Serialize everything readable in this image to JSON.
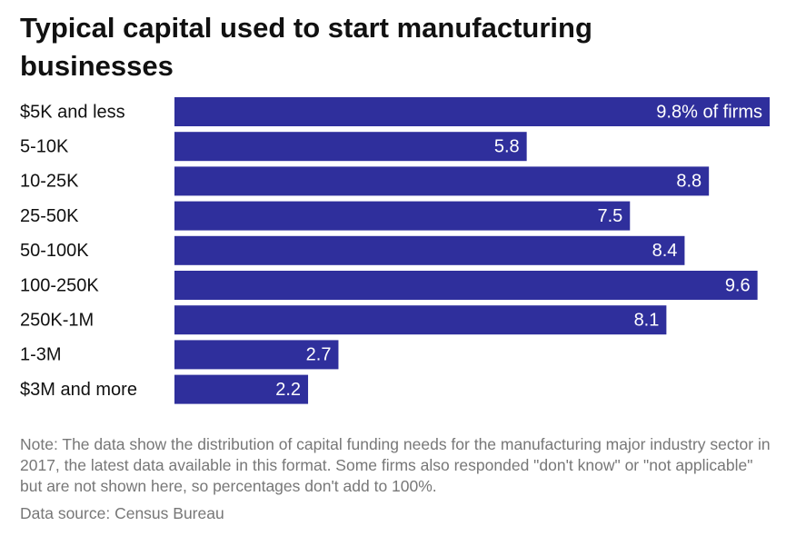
{
  "chart_data": {
    "type": "bar",
    "orientation": "horizontal",
    "title": "Typical capital used to start manufacturing businesses",
    "categories": [
      "$5K and less",
      "5-10K",
      "10-25K",
      "25-50K",
      "50-100K",
      "100-250K",
      "250K-1M",
      "1-3M",
      "$3M and more"
    ],
    "values": [
      9.8,
      5.8,
      8.8,
      7.5,
      8.4,
      9.6,
      8.1,
      2.7,
      2.2
    ],
    "value_labels": [
      "9.8% of firms",
      "5.8",
      "8.8",
      "7.5",
      "8.4",
      "9.6",
      "8.1",
      "2.7",
      "2.2"
    ],
    "color": "#2f2f9c",
    "note": "Note: The data show the distribution of capital funding needs for the manufacturing major industry sector in 2017, the latest data available in this format. Some firms also responded \"don't know\" or \"not applicable\" but are not shown here, so percentages don't add to 100%.",
    "source": "Data source: Census Bureau"
  }
}
